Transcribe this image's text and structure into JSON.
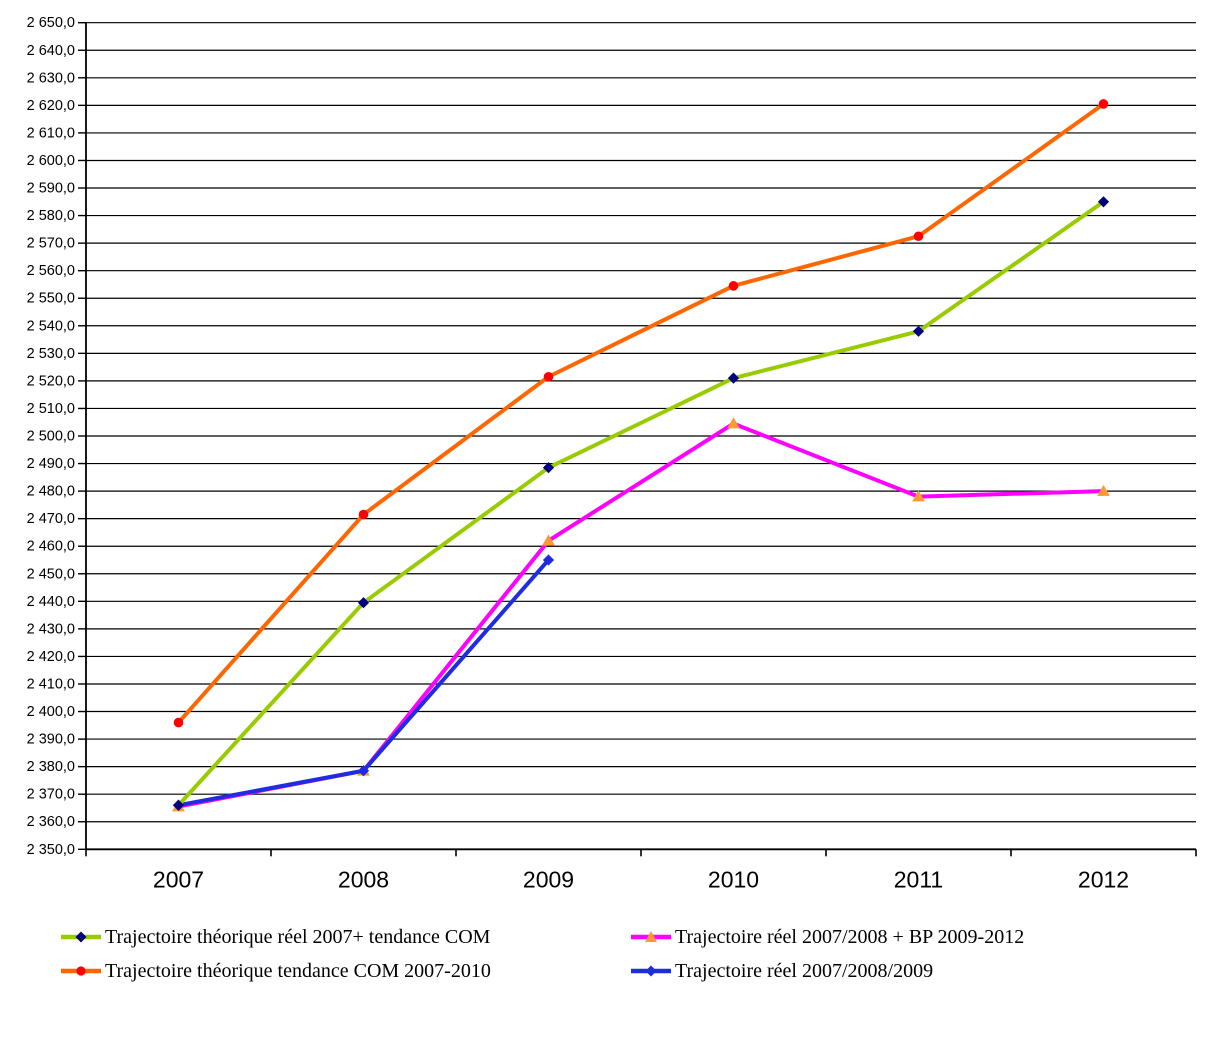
{
  "chart_data": {
    "type": "line",
    "title": "",
    "categories": [
      "2007",
      "2008",
      "2009",
      "2010",
      "2011",
      "2012"
    ],
    "series": [
      {
        "name": "Trajectoire théorique réel 2007+ tendance COM",
        "line_color": "#99CC00",
        "marker": "diamond",
        "marker_color": "#000080",
        "values": [
          2366,
          2439.5,
          2488.5,
          2521,
          2538,
          2585
        ]
      },
      {
        "name": "Trajectoire réel 2007/2008 + BP 2009-2012",
        "line_color": "#FF00FF",
        "marker": "triangle",
        "marker_color": "#FF9933",
        "values": [
          2365.5,
          2378.5,
          2462,
          2504.5,
          2478,
          2480
        ]
      },
      {
        "name": "Trajectoire théorique tendance COM 2007-2010",
        "line_color": "#FF6600",
        "marker": "circle",
        "marker_color": "#FF0000",
        "values": [
          2396,
          2471.5,
          2521.5,
          2554.5,
          2572.5,
          2620.5
        ]
      },
      {
        "name": "Trajectoire réel 2007/2008/2009",
        "line_color": "#1F2DE0",
        "marker": "diamond",
        "marker_color": "#1F2DE0",
        "values": [
          2366,
          2378.5,
          2455,
          null,
          null,
          null
        ]
      }
    ],
    "y_axis": {
      "min": 2350,
      "max": 2650,
      "step": 10,
      "tick_labels": [
        "2 350,0",
        "2 360,0",
        "2 370,0",
        "2 380,0",
        "2 390,0",
        "2 400,0",
        "2 410,0",
        "2 420,0",
        "2 430,0",
        "2 440,0",
        "2 450,0",
        "2 460,0",
        "2 470,0",
        "2 480,0",
        "2 490,0",
        "2 500,0",
        "2 510,0",
        "2 520,0",
        "2 530,0",
        "2 540,0",
        "2 550,0",
        "2 560,0",
        "2 570,0",
        "2 580,0",
        "2 590,0",
        "2 600,0",
        "2 610,0",
        "2 620,0",
        "2 630,0",
        "2 640,0",
        "2 650,0"
      ]
    },
    "x_axis": {
      "tick_labels": [
        "2007",
        "2008",
        "2009",
        "2010",
        "2011",
        "2012"
      ]
    },
    "grid": "horizontal",
    "legend_position": "bottom-two-columns",
    "colors": {
      "grid": "#000000",
      "axis": "#000000",
      "text": "#000000",
      "background": "#FFFFFF"
    }
  }
}
